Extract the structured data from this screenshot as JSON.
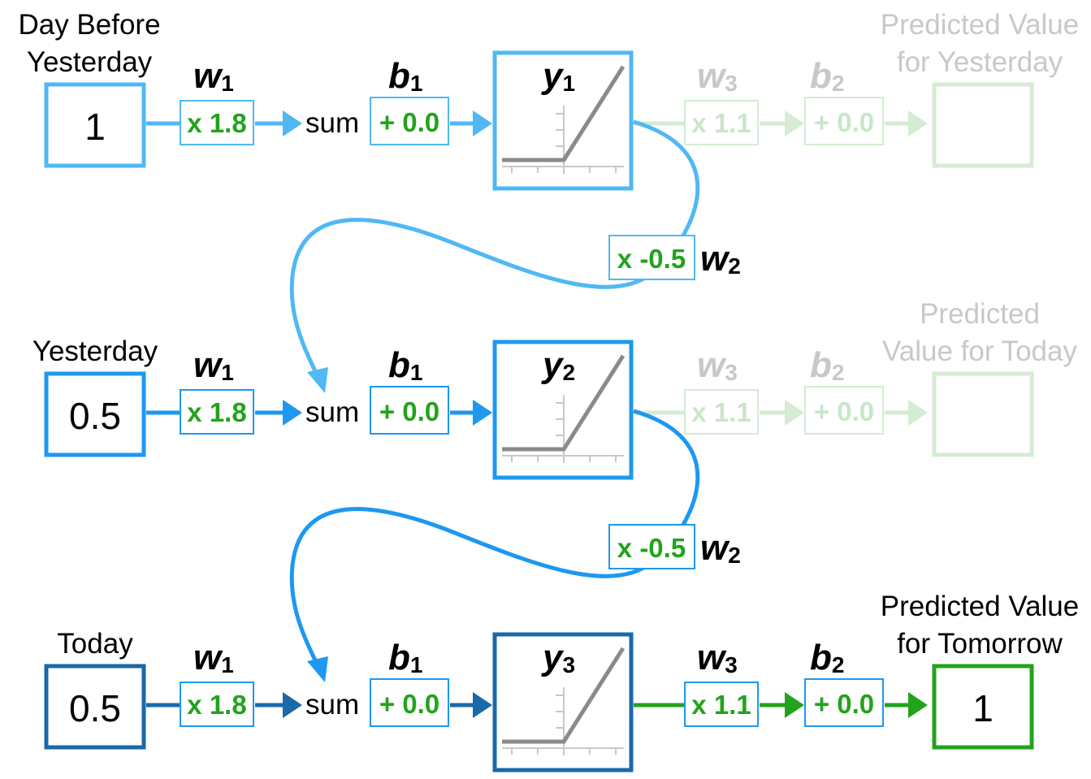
{
  "colors": {
    "row1": "#4fb8f5",
    "row2": "#1e98f0",
    "row3": "#1a69a8",
    "green": "#23a31c",
    "faded_green": "#d4ecd2",
    "faded_text": "#c8c8c8",
    "relu": "#8a8a8a"
  },
  "rows": [
    {
      "input_label_line1": "Day Before",
      "input_label_line2": "Yesterday",
      "input_value": "1",
      "w1_name": "w",
      "w1_sub": "1",
      "w1_value": "x 1.8",
      "sum_label": "sum",
      "b1_name": "b",
      "b1_sub": "1",
      "b1_value": "+ 0.0",
      "y_name": "y",
      "y_sub": "1",
      "w3_name": "w",
      "w3_sub": "3",
      "w3_value": "x 1.1",
      "b2_name": "b",
      "b2_sub": "2",
      "b2_value": "+ 0.0",
      "output_label_line1": "Predicted Value",
      "output_label_line2": "for Yesterday",
      "output_value": ""
    },
    {
      "input_label_line1": "Yesterday",
      "input_label_line2": "",
      "input_value": "0.5",
      "w1_name": "w",
      "w1_sub": "1",
      "w1_value": "x 1.8",
      "sum_label": "sum",
      "b1_name": "b",
      "b1_sub": "1",
      "b1_value": "+ 0.0",
      "y_name": "y",
      "y_sub": "2",
      "w3_name": "w",
      "w3_sub": "3",
      "w3_value": "x 1.1",
      "b2_name": "b",
      "b2_sub": "2",
      "b2_value": "+ 0.0",
      "output_label_line1": "Predicted",
      "output_label_line2": "Value for Today",
      "output_value": ""
    },
    {
      "input_label_line1": "Today",
      "input_label_line2": "",
      "input_value": "0.5",
      "w1_name": "w",
      "w1_sub": "1",
      "w1_value": "x 1.8",
      "sum_label": "sum",
      "b1_name": "b",
      "b1_sub": "1",
      "b1_value": "+ 0.0",
      "y_name": "y",
      "y_sub": "3",
      "w3_name": "w",
      "w3_sub": "3",
      "w3_value": "x 1.1",
      "b2_name": "b",
      "b2_sub": "2",
      "b2_value": "+ 0.0",
      "output_label_line1": "Predicted Value",
      "output_label_line2": "for Tomorrow",
      "output_value": "1"
    }
  ],
  "feedback": [
    {
      "w2_value": "x -0.5",
      "w2_name": "w",
      "w2_sub": "2"
    },
    {
      "w2_value": "x -0.5",
      "w2_name": "w",
      "w2_sub": "2"
    }
  ]
}
